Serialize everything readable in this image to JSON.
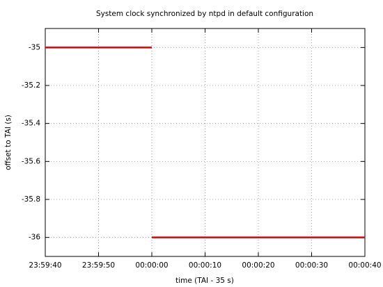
{
  "chart_data": {
    "type": "line",
    "title": "System clock synchronized by ntpd in default configuration",
    "xlabel": "time (TAI - 35 s)",
    "ylabel": "offset to TAI (s)",
    "color": "#e00000",
    "grid": true,
    "x": [
      "23:59:40",
      "23:59:42",
      "23:59:44",
      "23:59:46",
      "23:59:48",
      "23:59:50",
      "23:59:52",
      "23:59:54",
      "23:59:56",
      "23:59:58",
      "00:00:00",
      "00:00:00",
      "00:00:00",
      "00:00:02",
      "00:00:04",
      "00:00:06",
      "00:00:08",
      "00:00:10",
      "00:00:12",
      "00:00:14",
      "00:00:16",
      "00:00:18",
      "00:00:20",
      "00:00:22",
      "00:00:24",
      "00:00:26",
      "00:00:28",
      "00:00:30",
      "00:00:32",
      "00:00:34",
      "00:00:36",
      "00:00:38",
      "00:00:40"
    ],
    "values": [
      -35,
      -35,
      -35,
      -35,
      -35,
      -35,
      -35,
      -35,
      -35,
      -35,
      -35,
      null,
      -36,
      -36,
      -36,
      -36,
      -36,
      -36,
      -36,
      -36,
      -36,
      -36,
      -36,
      -36,
      -36,
      -36,
      -36,
      -36,
      -36,
      -36,
      -36,
      -36,
      -36
    ],
    "xlim": [
      "23:59:40",
      "00:00:40"
    ],
    "xticks": [
      "23:59:40",
      "23:59:50",
      "00:00:00",
      "00:00:10",
      "00:00:20",
      "00:00:30",
      "00:00:40"
    ],
    "ylim": [
      -36.1,
      -34.9
    ],
    "yticks": [
      -35,
      -35.2,
      -35.4,
      -35.6,
      -35.8,
      -36
    ]
  }
}
